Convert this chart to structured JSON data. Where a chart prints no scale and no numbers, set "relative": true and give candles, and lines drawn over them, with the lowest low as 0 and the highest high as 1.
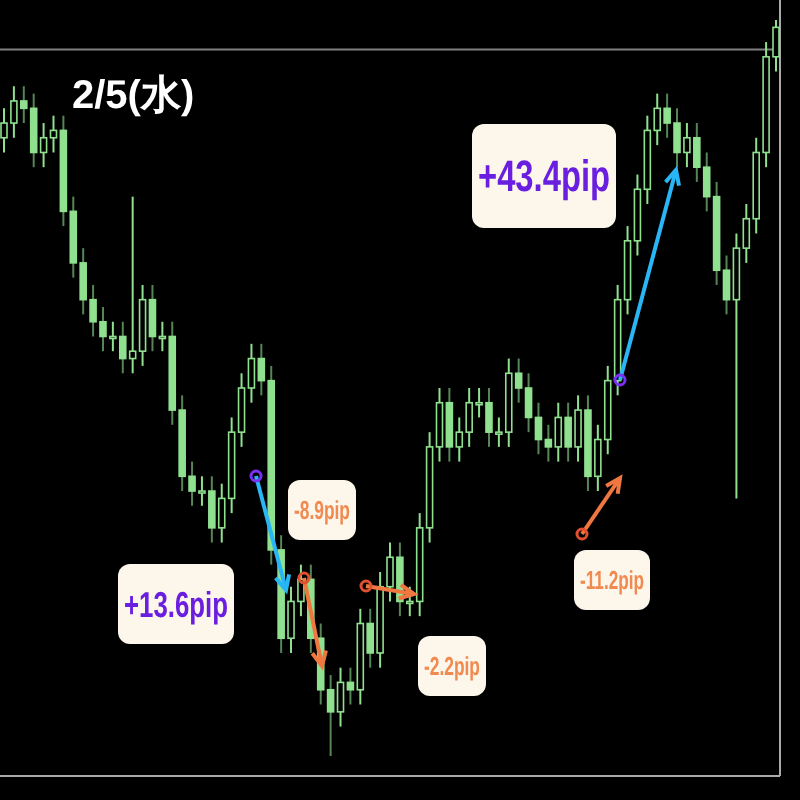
{
  "chart_data": {
    "type": "candlestick",
    "title": "2/5(水)",
    "relative": true,
    "color": "#8fe08f",
    "categories": [
      null,
      null,
      null,
      null,
      null,
      null,
      null,
      null,
      null,
      null,
      null,
      null,
      null,
      null,
      null,
      null,
      null,
      null,
      null,
      null,
      null,
      null,
      null,
      null,
      null,
      null,
      null,
      null,
      null,
      null,
      null,
      null,
      null,
      null,
      null,
      null,
      null,
      null,
      null,
      null,
      null,
      null,
      null,
      null,
      null,
      null,
      null,
      null,
      null,
      null,
      null,
      null,
      null,
      null,
      null,
      null,
      null,
      null,
      null,
      null,
      null,
      null,
      null,
      null,
      null,
      null,
      null,
      null,
      null,
      null,
      null,
      null,
      null,
      null,
      null,
      null,
      null,
      null,
      null
    ],
    "ohlc": [
      [
        0.84,
        0.88,
        0.82,
        0.86
      ],
      [
        0.86,
        0.91,
        0.84,
        0.89
      ],
      [
        0.89,
        0.91,
        0.86,
        0.88
      ],
      [
        0.88,
        0.9,
        0.8,
        0.82
      ],
      [
        0.82,
        0.86,
        0.8,
        0.84
      ],
      [
        0.84,
        0.87,
        0.82,
        0.85
      ],
      [
        0.85,
        0.87,
        0.72,
        0.74
      ],
      [
        0.74,
        0.76,
        0.65,
        0.67
      ],
      [
        0.67,
        0.69,
        0.6,
        0.62
      ],
      [
        0.62,
        0.64,
        0.57,
        0.59
      ],
      [
        0.59,
        0.61,
        0.55,
        0.57
      ],
      [
        0.57,
        0.59,
        0.55,
        0.57
      ],
      [
        0.57,
        0.59,
        0.52,
        0.54
      ],
      [
        0.54,
        0.76,
        0.52,
        0.55
      ],
      [
        0.55,
        0.64,
        0.53,
        0.62
      ],
      [
        0.62,
        0.64,
        0.55,
        0.57
      ],
      [
        0.57,
        0.59,
        0.55,
        0.57
      ],
      [
        0.57,
        0.59,
        0.45,
        0.47
      ],
      [
        0.47,
        0.49,
        0.36,
        0.38
      ],
      [
        0.38,
        0.4,
        0.34,
        0.36
      ],
      [
        0.36,
        0.38,
        0.34,
        0.36
      ],
      [
        0.36,
        0.38,
        0.29,
        0.31
      ],
      [
        0.31,
        0.37,
        0.29,
        0.35
      ],
      [
        0.35,
        0.46,
        0.33,
        0.44
      ],
      [
        0.44,
        0.52,
        0.42,
        0.5
      ],
      [
        0.5,
        0.56,
        0.48,
        0.54
      ],
      [
        0.54,
        0.56,
        0.49,
        0.51
      ],
      [
        0.51,
        0.53,
        0.26,
        0.28
      ],
      [
        0.28,
        0.3,
        0.14,
        0.16
      ],
      [
        0.16,
        0.23,
        0.14,
        0.21
      ],
      [
        0.21,
        0.26,
        0.19,
        0.24
      ],
      [
        0.24,
        0.26,
        0.14,
        0.16
      ],
      [
        0.16,
        0.18,
        0.07,
        0.09
      ],
      [
        0.09,
        0.11,
        0,
        0.06
      ],
      [
        0.06,
        0.12,
        0.04,
        0.1
      ],
      [
        0.1,
        0.12,
        0.07,
        0.09
      ],
      [
        0.09,
        0.2,
        0.07,
        0.18
      ],
      [
        0.18,
        0.2,
        0.12,
        0.14
      ],
      [
        0.14,
        0.25,
        0.12,
        0.23
      ],
      [
        0.23,
        0.29,
        0.21,
        0.27
      ],
      [
        0.27,
        0.29,
        0.19,
        0.21
      ],
      [
        0.21,
        0.23,
        0.19,
        0.21
      ],
      [
        0.21,
        0.33,
        0.19,
        0.31
      ],
      [
        0.31,
        0.44,
        0.29,
        0.42
      ],
      [
        0.42,
        0.5,
        0.4,
        0.48
      ],
      [
        0.48,
        0.5,
        0.4,
        0.42
      ],
      [
        0.42,
        0.46,
        0.4,
        0.44
      ],
      [
        0.44,
        0.5,
        0.42,
        0.48
      ],
      [
        0.48,
        0.5,
        0.46,
        0.48
      ],
      [
        0.48,
        0.5,
        0.42,
        0.44
      ],
      [
        0.44,
        0.46,
        0.42,
        0.44
      ],
      [
        0.44,
        0.54,
        0.42,
        0.52
      ],
      [
        0.52,
        0.54,
        0.48,
        0.5
      ],
      [
        0.5,
        0.52,
        0.44,
        0.46
      ],
      [
        0.46,
        0.48,
        0.41,
        0.43
      ],
      [
        0.43,
        0.45,
        0.4,
        0.42
      ],
      [
        0.42,
        0.48,
        0.4,
        0.46
      ],
      [
        0.46,
        0.48,
        0.4,
        0.42
      ],
      [
        0.42,
        0.49,
        0.4,
        0.47
      ],
      [
        0.47,
        0.49,
        0.36,
        0.38
      ],
      [
        0.38,
        0.45,
        0.36,
        0.43
      ],
      [
        0.43,
        0.53,
        0.41,
        0.51
      ],
      [
        0.51,
        0.64,
        0.49,
        0.62
      ],
      [
        0.62,
        0.72,
        0.6,
        0.7
      ],
      [
        0.7,
        0.79,
        0.68,
        0.77
      ],
      [
        0.77,
        0.87,
        0.75,
        0.85
      ],
      [
        0.85,
        0.9,
        0.83,
        0.88
      ],
      [
        0.88,
        0.9,
        0.84,
        0.86
      ],
      [
        0.86,
        0.88,
        0.8,
        0.82
      ],
      [
        0.82,
        0.86,
        0.8,
        0.84
      ],
      [
        0.84,
        0.86,
        0.78,
        0.8
      ],
      [
        0.8,
        0.82,
        0.74,
        0.76
      ],
      [
        0.76,
        0.78,
        0.64,
        0.66
      ],
      [
        0.66,
        0.68,
        0.6,
        0.62
      ],
      [
        0.62,
        0.71,
        0.35,
        0.69
      ],
      [
        0.69,
        0.75,
        0.67,
        0.73
      ],
      [
        0.73,
        0.84,
        0.71,
        0.82
      ],
      [
        0.82,
        0.97,
        0.8,
        0.95
      ],
      [
        0.95,
        1,
        0.93,
        0.99
      ]
    ],
    "ref_lines": [
      {
        "axis": "y",
        "value": 0.96,
        "color": "#808080"
      }
    ],
    "annotations": [
      "+43.4pip",
      "+13.6pip",
      "-8.9pip",
      "-2.2pip",
      "-11.2pip"
    ]
  }
}
